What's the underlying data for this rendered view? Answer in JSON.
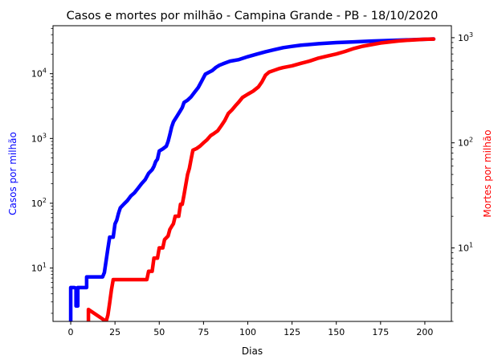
{
  "chart_data": {
    "type": "line",
    "title": "Casos e mortes por milhão - Campina Grande - PB - 18/10/2020",
    "xlabel": "Dias",
    "xlim": [
      -10,
      215
    ],
    "xticks": [
      0,
      25,
      50,
      75,
      100,
      125,
      150,
      175,
      200
    ],
    "grid": false,
    "y_left": {
      "label": "Casos por milhão",
      "scale": "log",
      "ylim": [
        1.5,
        55000
      ],
      "ticks": [
        {
          "v": 10,
          "e": "1"
        },
        {
          "v": 100,
          "e": "2"
        },
        {
          "v": 1000,
          "e": "3"
        },
        {
          "v": 10000,
          "e": "4"
        }
      ],
      "color": "#0000ff"
    },
    "y_right": {
      "label": "Mortes por milhão",
      "scale": "log",
      "ylim": [
        2.0,
        1300
      ],
      "ticks": [
        {
          "v": 10,
          "e": "1"
        },
        {
          "v": 100,
          "e": "2"
        },
        {
          "v": 1000,
          "e": "3"
        }
      ],
      "color": "#ff0000"
    },
    "series": [
      {
        "axis": "left",
        "color": "#0000ff",
        "points": [
          [
            0,
            1.5
          ],
          [
            0,
            5
          ],
          [
            1,
            5
          ],
          [
            2,
            5
          ],
          [
            3,
            4.9
          ],
          [
            3,
            2.6
          ],
          [
            4,
            2.6
          ],
          [
            4,
            5
          ],
          [
            9,
            5
          ],
          [
            9,
            7.3
          ],
          [
            18,
            7.3
          ],
          [
            19,
            8.5
          ],
          [
            20,
            13
          ],
          [
            21,
            20
          ],
          [
            22,
            30
          ],
          [
            24,
            30
          ],
          [
            25,
            48
          ],
          [
            26,
            55
          ],
          [
            27,
            70
          ],
          [
            28,
            85
          ],
          [
            30,
            97
          ],
          [
            32,
            110
          ],
          [
            34,
            130
          ],
          [
            36,
            145
          ],
          [
            38,
            170
          ],
          [
            40,
            200
          ],
          [
            42,
            230
          ],
          [
            44,
            290
          ],
          [
            46,
            330
          ],
          [
            47,
            370
          ],
          [
            48,
            440
          ],
          [
            49,
            480
          ],
          [
            50,
            640
          ],
          [
            52,
            690
          ],
          [
            54,
            760
          ],
          [
            55,
            900
          ],
          [
            56,
            1150
          ],
          [
            57,
            1500
          ],
          [
            58,
            1800
          ],
          [
            60,
            2200
          ],
          [
            62,
            2700
          ],
          [
            63,
            3000
          ],
          [
            64,
            3600
          ],
          [
            66,
            3900
          ],
          [
            68,
            4400
          ],
          [
            70,
            5200
          ],
          [
            72,
            6100
          ],
          [
            74,
            7700
          ],
          [
            76,
            9800
          ],
          [
            78,
            10500
          ],
          [
            80,
            11200
          ],
          [
            82,
            12500
          ],
          [
            84,
            13500
          ],
          [
            86,
            14200
          ],
          [
            90,
            15600
          ],
          [
            95,
            16500
          ],
          [
            100,
            18300
          ],
          [
            105,
            20000
          ],
          [
            110,
            21800
          ],
          [
            115,
            23500
          ],
          [
            120,
            25200
          ],
          [
            125,
            26400
          ],
          [
            130,
            27500
          ],
          [
            140,
            29000
          ],
          [
            150,
            30200
          ],
          [
            160,
            31000
          ],
          [
            170,
            31800
          ],
          [
            180,
            32500
          ],
          [
            190,
            33200
          ],
          [
            200,
            34000
          ],
          [
            205,
            34300
          ]
        ]
      },
      {
        "axis": "right",
        "color": "#ff0000",
        "points": [
          [
            10,
            2.0
          ],
          [
            10,
            2.6
          ],
          [
            20,
            2.0
          ],
          [
            21,
            2.3
          ],
          [
            22,
            3.0
          ],
          [
            23,
            4.0
          ],
          [
            24,
            5.0
          ],
          [
            43,
            5.0
          ],
          [
            44,
            6.0
          ],
          [
            46,
            6.0
          ],
          [
            47,
            8.0
          ],
          [
            49,
            8.0
          ],
          [
            50,
            10.0
          ],
          [
            52,
            10.0
          ],
          [
            53,
            12.0
          ],
          [
            55,
            13.0
          ],
          [
            56,
            15.0
          ],
          [
            57,
            16.0
          ],
          [
            58,
            17.0
          ],
          [
            59,
            20.0
          ],
          [
            61,
            20.0
          ],
          [
            62,
            26.0
          ],
          [
            63,
            26.0
          ],
          [
            64,
            32.0
          ],
          [
            65,
            40.0
          ],
          [
            66,
            50.0
          ],
          [
            67,
            57.0
          ],
          [
            68,
            70.0
          ],
          [
            69,
            85.0
          ],
          [
            71,
            88.0
          ],
          [
            73,
            93.0
          ],
          [
            75,
            100.0
          ],
          [
            77,
            107.0
          ],
          [
            79,
            117.0
          ],
          [
            81,
            123.0
          ],
          [
            83,
            130.0
          ],
          [
            85,
            145.0
          ],
          [
            87,
            163.0
          ],
          [
            89,
            190.0
          ],
          [
            91,
            205.0
          ],
          [
            93,
            225.0
          ],
          [
            95,
            245.0
          ],
          [
            97,
            270.0
          ],
          [
            100,
            290.0
          ],
          [
            103,
            310.0
          ],
          [
            106,
            340.0
          ],
          [
            108,
            380.0
          ],
          [
            110,
            440.0
          ],
          [
            112,
            470.0
          ],
          [
            115,
            490.0
          ],
          [
            118,
            510.0
          ],
          [
            120,
            520.0
          ],
          [
            125,
            540.0
          ],
          [
            130,
            570.0
          ],
          [
            135,
            600.0
          ],
          [
            140,
            640.0
          ],
          [
            145,
            670.0
          ],
          [
            150,
            700.0
          ],
          [
            155,
            740.0
          ],
          [
            160,
            790.0
          ],
          [
            165,
            830.0
          ],
          [
            170,
            860.0
          ],
          [
            175,
            890.0
          ],
          [
            180,
            910.0
          ],
          [
            185,
            930.0
          ],
          [
            190,
            945.0
          ],
          [
            195,
            955.0
          ],
          [
            200,
            965.0
          ],
          [
            205,
            970.0
          ]
        ]
      }
    ]
  }
}
